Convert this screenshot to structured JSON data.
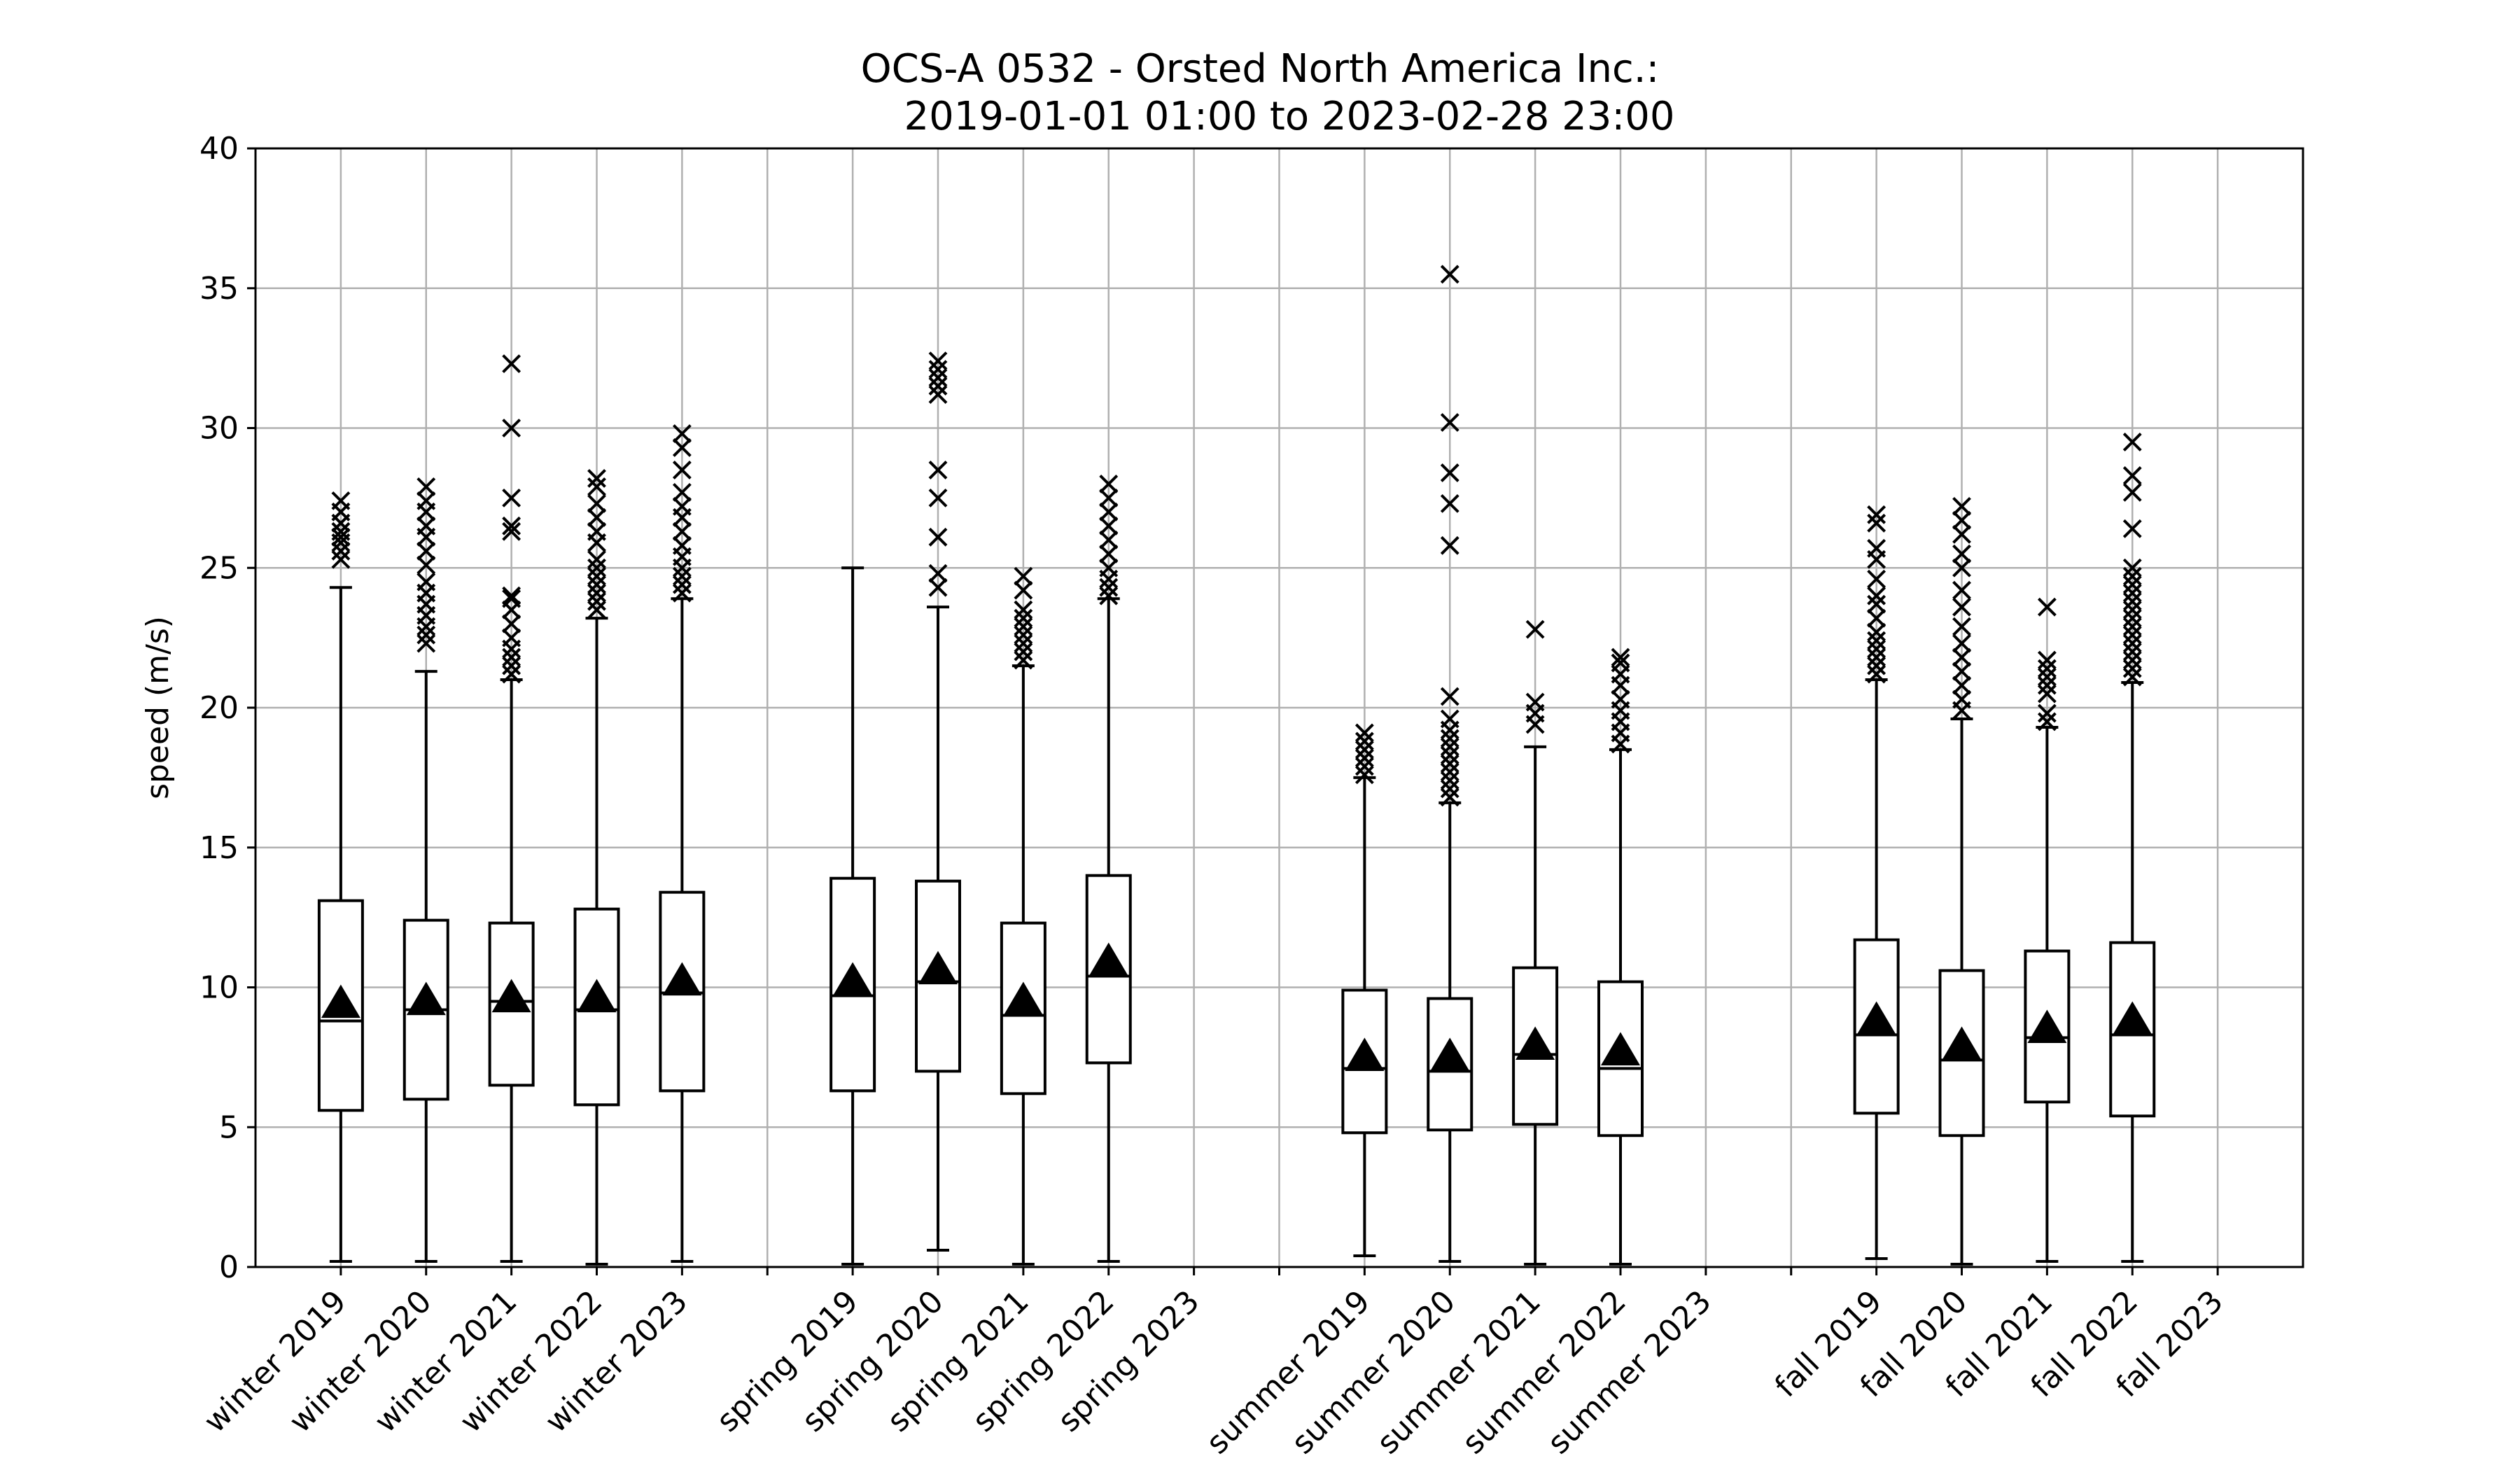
{
  "chart_data": {
    "type": "box",
    "title": [
      "OCS-A 0532 - Orsted North America Inc.:",
      "2019-01-01 01:00 to 2023-02-28 23:00"
    ],
    "ylabel": "speed (m/s)",
    "xlabel": "",
    "ylim": [
      0,
      40
    ],
    "yticks": [
      0,
      5,
      10,
      15,
      20,
      25,
      30,
      35,
      40
    ],
    "grid": true,
    "categories": [
      "winter 2019",
      "winter 2020",
      "winter 2021",
      "winter 2022",
      "winter 2023",
      "",
      "spring 2019",
      "spring 2020",
      "spring 2021",
      "spring 2022",
      "spring 2023",
      "",
      "summer 2019",
      "summer 2020",
      "summer 2021",
      "summer 2022",
      "summer 2023",
      "",
      "fall 2019",
      "fall 2020",
      "fall 2021",
      "fall 2022",
      "fall 2023"
    ],
    "boxes": [
      {
        "label": "winter 2019",
        "whislo": 0.2,
        "q1": 5.6,
        "med": 8.8,
        "q3": 13.1,
        "whishi": 24.3,
        "mean": 9.4,
        "fliers": [
          25.3,
          25.6,
          25.9,
          26.1,
          26.3,
          26.6,
          27.0,
          27.4
        ]
      },
      {
        "label": "winter 2020",
        "whislo": 0.2,
        "q1": 6.0,
        "med": 9.2,
        "q3": 12.4,
        "whishi": 21.3,
        "mean": 9.5,
        "fliers": [
          22.3,
          22.6,
          22.9,
          23.3,
          23.7,
          24.1,
          24.5,
          25.1,
          25.6,
          26.1,
          26.5,
          27.0,
          27.4,
          27.9
        ]
      },
      {
        "label": "winter 2021",
        "whislo": 0.2,
        "q1": 6.5,
        "med": 9.5,
        "q3": 12.3,
        "whishi": 21.0,
        "mean": 9.6,
        "fliers": [
          21.2,
          21.5,
          21.8,
          22.1,
          22.5,
          23.0,
          23.5,
          23.9,
          24.0,
          26.3,
          26.5,
          27.5,
          30.0,
          32.3
        ]
      },
      {
        "label": "winter 2022",
        "whislo": 0.1,
        "q1": 5.8,
        "med": 9.2,
        "q3": 12.8,
        "whishi": 23.2,
        "mean": 9.6,
        "fliers": [
          23.5,
          23.8,
          24.1,
          24.4,
          24.7,
          25.0,
          25.3,
          25.9,
          26.3,
          26.8,
          27.3,
          27.9,
          28.2
        ]
      },
      {
        "label": "winter 2023",
        "whislo": 0.2,
        "q1": 6.3,
        "med": 9.8,
        "q3": 13.4,
        "whishi": 23.9,
        "mean": 10.2,
        "fliers": [
          24.1,
          24.4,
          24.7,
          25.0,
          25.4,
          25.8,
          26.3,
          26.8,
          27.2,
          27.7,
          28.5,
          29.3,
          29.8
        ]
      },
      null,
      {
        "label": "spring 2019",
        "whislo": 0.1,
        "q1": 6.3,
        "med": 9.7,
        "q3": 13.9,
        "whishi": 25.0,
        "mean": 10.2,
        "fliers": []
      },
      {
        "label": "spring 2020",
        "whislo": 0.6,
        "q1": 7.0,
        "med": 10.2,
        "q3": 13.8,
        "whishi": 23.6,
        "mean": 10.6,
        "fliers": [
          24.3,
          24.8,
          26.1,
          27.5,
          28.5,
          31.2,
          31.5,
          31.8,
          32.1,
          32.4
        ]
      },
      {
        "label": "spring 2021",
        "whislo": 0.1,
        "q1": 6.2,
        "med": 9.0,
        "q3": 12.3,
        "whishi": 21.5,
        "mean": 9.5,
        "fliers": [
          21.7,
          22.0,
          22.3,
          22.6,
          22.9,
          23.2,
          23.5,
          24.2,
          24.7
        ]
      },
      {
        "label": "spring 2022",
        "whislo": 0.2,
        "q1": 7.3,
        "med": 10.4,
        "q3": 14.0,
        "whishi": 23.9,
        "mean": 10.9,
        "fliers": [
          24.0,
          24.3,
          24.6,
          25.0,
          25.5,
          26.0,
          26.5,
          27.0,
          27.5,
          28.0
        ]
      },
      {
        "label": "spring 2023",
        "empty": true
      },
      null,
      {
        "label": "summer 2019",
        "whislo": 0.4,
        "q1": 4.8,
        "med": 7.1,
        "q3": 9.9,
        "whishi": 17.5,
        "mean": 7.5,
        "fliers": [
          17.6,
          17.9,
          18.2,
          18.5,
          18.8,
          19.1
        ]
      },
      {
        "label": "summer 2020",
        "whislo": 0.2,
        "q1": 4.9,
        "med": 7.0,
        "q3": 9.6,
        "whishi": 16.6,
        "mean": 7.5,
        "fliers": [
          16.8,
          17.1,
          17.4,
          17.7,
          18.0,
          18.3,
          18.6,
          18.9,
          19.2,
          19.6,
          20.4,
          25.8,
          27.3,
          28.4,
          30.2,
          35.5
        ]
      },
      {
        "label": "summer 2021",
        "whislo": 0.1,
        "q1": 5.1,
        "med": 7.6,
        "q3": 10.7,
        "whishi": 18.6,
        "mean": 7.9,
        "fliers": [
          19.4,
          19.8,
          20.2,
          22.8
        ]
      },
      {
        "label": "summer 2022",
        "whislo": 0.1,
        "q1": 4.7,
        "med": 7.1,
        "q3": 10.2,
        "whishi": 18.5,
        "mean": 7.7,
        "fliers": [
          18.7,
          19.1,
          19.5,
          19.9,
          20.3,
          20.8,
          21.2,
          21.6,
          21.8
        ]
      },
      {
        "label": "summer 2023",
        "empty": true
      },
      null,
      {
        "label": "fall 2019",
        "whislo": 0.3,
        "q1": 5.5,
        "med": 8.3,
        "q3": 11.7,
        "whishi": 21.0,
        "mean": 8.8,
        "fliers": [
          21.2,
          21.5,
          21.8,
          22.1,
          22.4,
          22.7,
          23.2,
          23.7,
          24.0,
          24.6,
          25.3,
          25.7,
          26.6,
          26.9
        ]
      },
      {
        "label": "fall 2020",
        "whislo": 0.1,
        "q1": 4.7,
        "med": 7.4,
        "q3": 10.6,
        "whishi": 19.6,
        "mean": 7.9,
        "fliers": [
          19.9,
          20.3,
          20.8,
          21.3,
          21.8,
          22.3,
          22.9,
          23.6,
          24.2,
          25.0,
          25.5,
          26.2,
          26.7,
          27.2
        ]
      },
      {
        "label": "fall 2021",
        "whislo": 0.2,
        "q1": 5.9,
        "med": 8.2,
        "q3": 11.3,
        "whishi": 19.3,
        "mean": 8.5,
        "fliers": [
          19.5,
          19.8,
          20.5,
          20.8,
          21.1,
          21.4,
          21.7,
          23.6
        ]
      },
      {
        "label": "fall 2022",
        "whislo": 0.2,
        "q1": 5.4,
        "med": 8.3,
        "q3": 11.6,
        "whishi": 20.9,
        "mean": 8.8,
        "fliers": [
          21.1,
          21.4,
          21.7,
          22.0,
          22.3,
          22.6,
          22.9,
          23.2,
          23.5,
          23.8,
          24.1,
          24.4,
          24.7,
          25.0,
          26.4,
          27.7,
          28.3,
          29.5
        ]
      },
      {
        "label": "fall 2023",
        "empty": true
      }
    ]
  }
}
